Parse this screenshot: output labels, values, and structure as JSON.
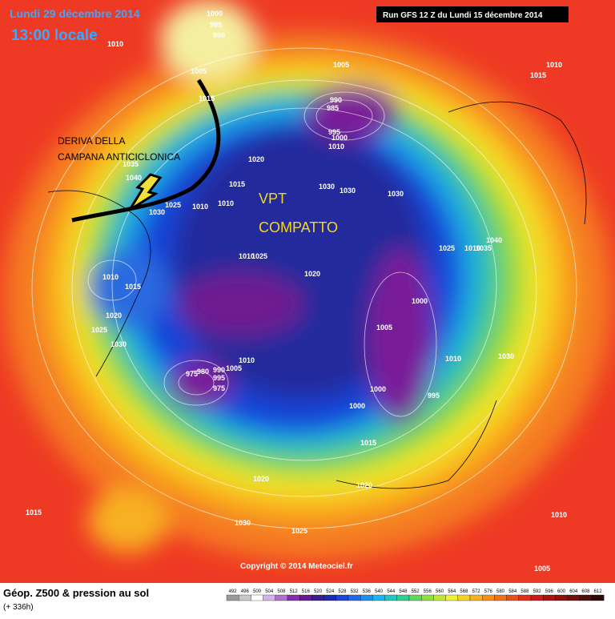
{
  "header": {
    "date": "Lundi 29 décembre 2014",
    "local_time": "13:00 locale",
    "run": "Run GFS 12 Z du Lundi 15 décembre 2014"
  },
  "annotations": {
    "drift": [
      "DERIVA DELLA",
      "CAMPANA ANTICICLONICA"
    ],
    "vortex": [
      "VPT",
      "COMPATTO"
    ]
  },
  "isobar_labels": [
    "1000",
    "995",
    "990",
    "1010",
    "1005",
    "1015",
    "1005",
    "1015",
    "1010",
    "990",
    "985",
    "995",
    "1000",
    "1010",
    "1035",
    "1040",
    "1020",
    "1015",
    "1030",
    "1030",
    "1030",
    "1025",
    "1030",
    "1010",
    "1010",
    "1040",
    "1025",
    "1035",
    "1010",
    "1010",
    "1025",
    "1020",
    "1010",
    "1015",
    "1000",
    "1020",
    "1025",
    "1030",
    "1005",
    "1030",
    "1010",
    "1010",
    "1005",
    "975",
    "980",
    "990",
    "995",
    "975",
    "1000",
    "995",
    "1000",
    "1015",
    "1020",
    "1020",
    "1015",
    "1030",
    "1025",
    "1010",
    "1005"
  ],
  "copyright": "Copyright © 2014 Meteociel.fr",
  "footer": {
    "title": "Géop. Z500 & pression au sol",
    "lead": "(+ 336h)"
  },
  "scale": {
    "labels": [
      "492",
      "496",
      "500",
      "504",
      "508",
      "512",
      "516",
      "520",
      "524",
      "528",
      "532",
      "536",
      "540",
      "544",
      "548",
      "552",
      "556",
      "560",
      "564",
      "568",
      "572",
      "576",
      "580",
      "584",
      "588",
      "592",
      "596",
      "600",
      "604",
      "608",
      "612"
    ]
  }
}
